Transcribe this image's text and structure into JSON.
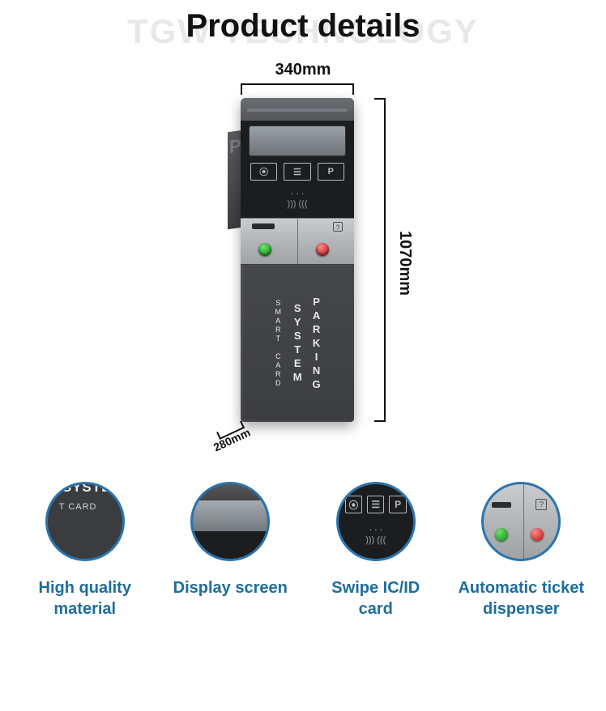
{
  "watermark": "TGW TECHNOLOGY",
  "title": "Product details",
  "dimensions": {
    "width_label": "340mm",
    "height_label": "1070mm",
    "depth_label": "280mm"
  },
  "machine": {
    "p_letter": "P",
    "icon_box_1": "⦿",
    "icon_box_2": "☰",
    "icon_box_3": "P",
    "nfc_line1": "⋅ ⋅ ⋅",
    "nfc_line2": ")))  (((",
    "help_icon": "?",
    "body_text_main": "PARKING SYSTEM",
    "body_text_sub": "SMART CARD",
    "body_colors": {
      "shell": "#47494d",
      "black_panel": "#1c1d1f",
      "silver_panel": "#b4b7ba",
      "lcd": "#868d92",
      "green_button": "#19a019",
      "red_button": "#c81e1e",
      "text": "#e8e9eb"
    }
  },
  "features": [
    {
      "label_line1": "High quality",
      "label_line2": "material",
      "circle": {
        "text1": "SYSTEM",
        "text2": "T  CARD"
      }
    },
    {
      "label_line1": "Display screen",
      "label_line2": ""
    },
    {
      "label_line1": "Swipe IC/ID",
      "label_line2": "card",
      "circle": {
        "box1": "⦿",
        "box2": "☰",
        "box3": "P",
        "nfc1": "⋅ ⋅ ⋅",
        "nfc2": ")))  ((("
      }
    },
    {
      "label_line1": "Automatic ticket",
      "label_line2": "dispenser",
      "circle": {
        "q": "?"
      }
    }
  ],
  "styling": {
    "title_color": "#111111",
    "title_fontsize": 40,
    "watermark_color": "#e8e8e8",
    "feature_label_color": "#1d6d9d",
    "feature_label_fontsize": 20,
    "circle_border_color": "#2a74ae",
    "circle_diameter": 98,
    "dim_line_color": "#111111",
    "background": "#ffffff"
  }
}
